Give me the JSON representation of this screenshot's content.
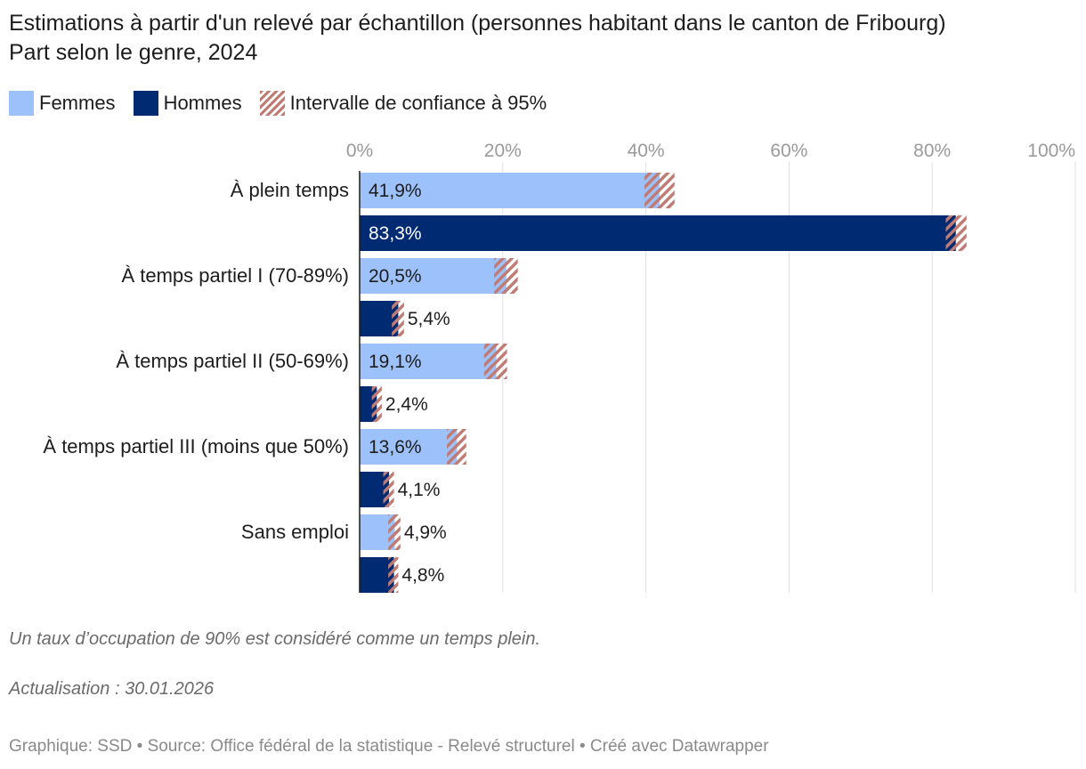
{
  "title": {
    "line1": "Estimations à partir d'un relevé par échantillon (personnes habitant dans le canton de Fribourg)",
    "line2": "Part selon le genre, 2024"
  },
  "legend": {
    "femmes": "Femmes",
    "hommes": "Hommes",
    "ci": "Intervalle de confiance à 95%"
  },
  "colors": {
    "femmes": "#9dc1fa",
    "hommes": "#002a72",
    "ci": "#c07c74",
    "grid": "#e0e0e0",
    "tick": "#9a9a9a"
  },
  "chart_data": {
    "type": "bar",
    "orientation": "horizontal",
    "xlim": [
      0,
      100
    ],
    "x_ticks": [
      "0%",
      "20%",
      "40%",
      "60%",
      "80%",
      "100%"
    ],
    "grid": true,
    "categories": [
      "À plein temps",
      "À temps partiel I (70-89%)",
      "À temps partiel II (50-69%)",
      "À temps partiel III (moins que 50%)",
      "Sans emploi"
    ],
    "series": [
      {
        "name": "Femmes",
        "values": [
          41.9,
          20.5,
          19.1,
          13.6,
          4.9
        ],
        "labels": [
          "41,9%",
          "20,5%",
          "19,1%",
          "13,6%",
          "4,9%"
        ],
        "ci_low": [
          39.8,
          18.8,
          17.4,
          12.2,
          4.0
        ],
        "ci_high": [
          44.0,
          22.1,
          20.6,
          14.9,
          5.7
        ]
      },
      {
        "name": "Hommes",
        "values": [
          83.3,
          5.4,
          2.4,
          4.1,
          4.8
        ],
        "labels": [
          "83,3%",
          "5,4%",
          "2,4%",
          "4,1%",
          "4,8%"
        ],
        "ci_low": [
          81.9,
          4.5,
          1.7,
          3.3,
          4.0
        ],
        "ci_high": [
          84.8,
          6.2,
          3.1,
          4.8,
          5.4
        ]
      }
    ]
  },
  "notes": {
    "note1": "Un taux d’occupation de 90% est considéré comme un temps plein.",
    "note2": "Actualisation : 30.01.2026"
  },
  "footer": "Graphique: SSD • Source: Office fédéral de la statistique - Relevé structurel • Créé avec Datawrapper"
}
